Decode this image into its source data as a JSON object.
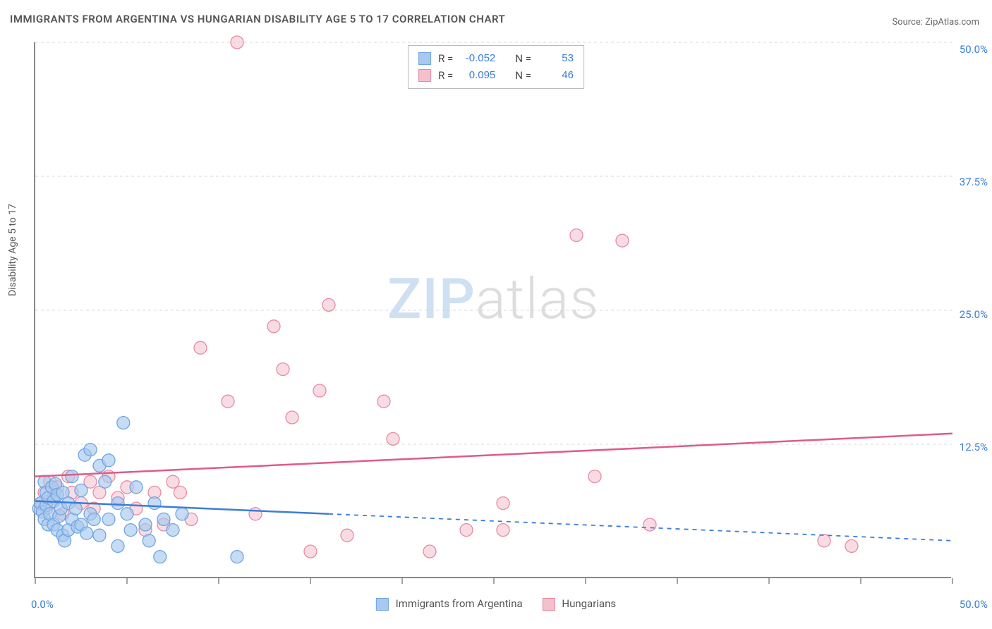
{
  "title": "IMMIGRANTS FROM ARGENTINA VS HUNGARIAN DISABILITY AGE 5 TO 17 CORRELATION CHART",
  "source_label": "Source:",
  "source_site": "ZipAtlas.com",
  "ylabel": "Disability Age 5 to 17",
  "watermark_a": "ZIP",
  "watermark_b": "atlas",
  "chart": {
    "type": "scatter",
    "xlim": [
      0,
      50
    ],
    "ylim": [
      0,
      50
    ],
    "xticks": [
      0,
      5,
      10,
      15,
      20,
      25,
      30,
      35,
      40,
      45,
      50
    ],
    "yticks_major": [
      12.5,
      25.0,
      37.5,
      50.0
    ],
    "x_tick_labels": {
      "min": "0.0%",
      "max": "50.0%"
    },
    "y_tick_labels": [
      "12.5%",
      "25.0%",
      "37.5%",
      "50.0%"
    ],
    "grid_color": "#d9d9d9",
    "grid_dash": "4,4",
    "axis_color": "#888888",
    "background_color": "#ffffff",
    "series": [
      {
        "name": "Immigrants from Argentina",
        "key": "blue",
        "fill": "#a8c8ee",
        "stroke": "#6fa6e0",
        "fill_opacity": 0.65,
        "marker_radius": 9,
        "R": "-0.052",
        "N": "53",
        "regression": {
          "x1": 0,
          "y1": 7.2,
          "x2": 16,
          "y2": 6.0,
          "dash_after_x": 16,
          "x_end": 50,
          "y_end": 3.5,
          "color": "#3b7dd8",
          "width": 2.5
        },
        "points": [
          [
            0.2,
            6.5
          ],
          [
            0.3,
            7.0
          ],
          [
            0.4,
            6.2
          ],
          [
            0.5,
            9.0
          ],
          [
            0.5,
            5.5
          ],
          [
            0.6,
            8.0
          ],
          [
            0.6,
            6.8
          ],
          [
            0.7,
            7.5
          ],
          [
            0.7,
            5.0
          ],
          [
            0.8,
            6.0
          ],
          [
            0.9,
            8.5
          ],
          [
            1.0,
            7.2
          ],
          [
            1.0,
            5.0
          ],
          [
            1.1,
            8.8
          ],
          [
            1.2,
            4.5
          ],
          [
            1.2,
            7.8
          ],
          [
            1.3,
            5.8
          ],
          [
            1.4,
            6.5
          ],
          [
            1.5,
            4.0
          ],
          [
            1.5,
            8.0
          ],
          [
            1.6,
            3.5
          ],
          [
            1.8,
            7.0
          ],
          [
            1.8,
            4.5
          ],
          [
            2.0,
            5.5
          ],
          [
            2.0,
            9.5
          ],
          [
            2.2,
            6.5
          ],
          [
            2.3,
            4.8
          ],
          [
            2.5,
            8.2
          ],
          [
            2.5,
            5.0
          ],
          [
            2.7,
            11.5
          ],
          [
            2.8,
            4.2
          ],
          [
            3.0,
            12.0
          ],
          [
            3.0,
            6.0
          ],
          [
            3.2,
            5.5
          ],
          [
            3.5,
            10.5
          ],
          [
            3.5,
            4.0
          ],
          [
            3.8,
            9.0
          ],
          [
            4.0,
            11.0
          ],
          [
            4.0,
            5.5
          ],
          [
            4.5,
            7.0
          ],
          [
            4.5,
            3.0
          ],
          [
            4.8,
            14.5
          ],
          [
            5.0,
            6.0
          ],
          [
            5.2,
            4.5
          ],
          [
            5.5,
            8.5
          ],
          [
            6.0,
            5.0
          ],
          [
            6.2,
            3.5
          ],
          [
            6.5,
            7.0
          ],
          [
            6.8,
            2.0
          ],
          [
            7.0,
            5.5
          ],
          [
            7.5,
            4.5
          ],
          [
            8.0,
            6.0
          ],
          [
            11.0,
            2.0
          ]
        ]
      },
      {
        "name": "Hungarians",
        "key": "pink",
        "fill": "#f4c0cc",
        "stroke": "#e68aa4",
        "fill_opacity": 0.55,
        "marker_radius": 9,
        "R": "0.095",
        "N": "46",
        "regression": {
          "x1": 0,
          "y1": 9.5,
          "x2": 50,
          "y2": 13.5,
          "color": "#e05a8a",
          "width": 2.5
        },
        "points": [
          [
            0.3,
            7.0
          ],
          [
            0.5,
            8.0
          ],
          [
            0.6,
            6.5
          ],
          [
            0.8,
            9.0
          ],
          [
            1.0,
            7.5
          ],
          [
            1.2,
            8.5
          ],
          [
            1.5,
            6.0
          ],
          [
            1.8,
            9.5
          ],
          [
            2.0,
            8.0
          ],
          [
            2.5,
            7.0
          ],
          [
            3.0,
            9.0
          ],
          [
            3.2,
            6.5
          ],
          [
            3.5,
            8.0
          ],
          [
            4.0,
            9.5
          ],
          [
            4.5,
            7.5
          ],
          [
            5.0,
            8.5
          ],
          [
            5.5,
            6.5
          ],
          [
            6.0,
            4.5
          ],
          [
            6.5,
            8.0
          ],
          [
            7.0,
            5.0
          ],
          [
            7.5,
            9.0
          ],
          [
            7.9,
            8.0
          ],
          [
            8.5,
            5.5
          ],
          [
            9.0,
            21.5
          ],
          [
            10.5,
            16.5
          ],
          [
            11.0,
            50.0
          ],
          [
            12.0,
            6.0
          ],
          [
            13.0,
            23.5
          ],
          [
            13.5,
            19.5
          ],
          [
            14.0,
            15.0
          ],
          [
            15.0,
            2.5
          ],
          [
            15.5,
            17.5
          ],
          [
            16.0,
            25.5
          ],
          [
            17.0,
            4.0
          ],
          [
            19.0,
            16.5
          ],
          [
            19.5,
            13.0
          ],
          [
            21.5,
            2.5
          ],
          [
            23.5,
            4.5
          ],
          [
            25.5,
            7.0
          ],
          [
            25.5,
            4.5
          ],
          [
            29.5,
            32.0
          ],
          [
            30.5,
            9.5
          ],
          [
            32.0,
            31.5
          ],
          [
            33.5,
            5.0
          ],
          [
            43.0,
            3.5
          ],
          [
            44.5,
            3.0
          ]
        ]
      }
    ]
  },
  "legend_stats": {
    "r_label": "R =",
    "n_label": "N ="
  },
  "legend_bottom": {
    "blue_label": "Immigrants from Argentina",
    "pink_label": "Hungarians"
  }
}
